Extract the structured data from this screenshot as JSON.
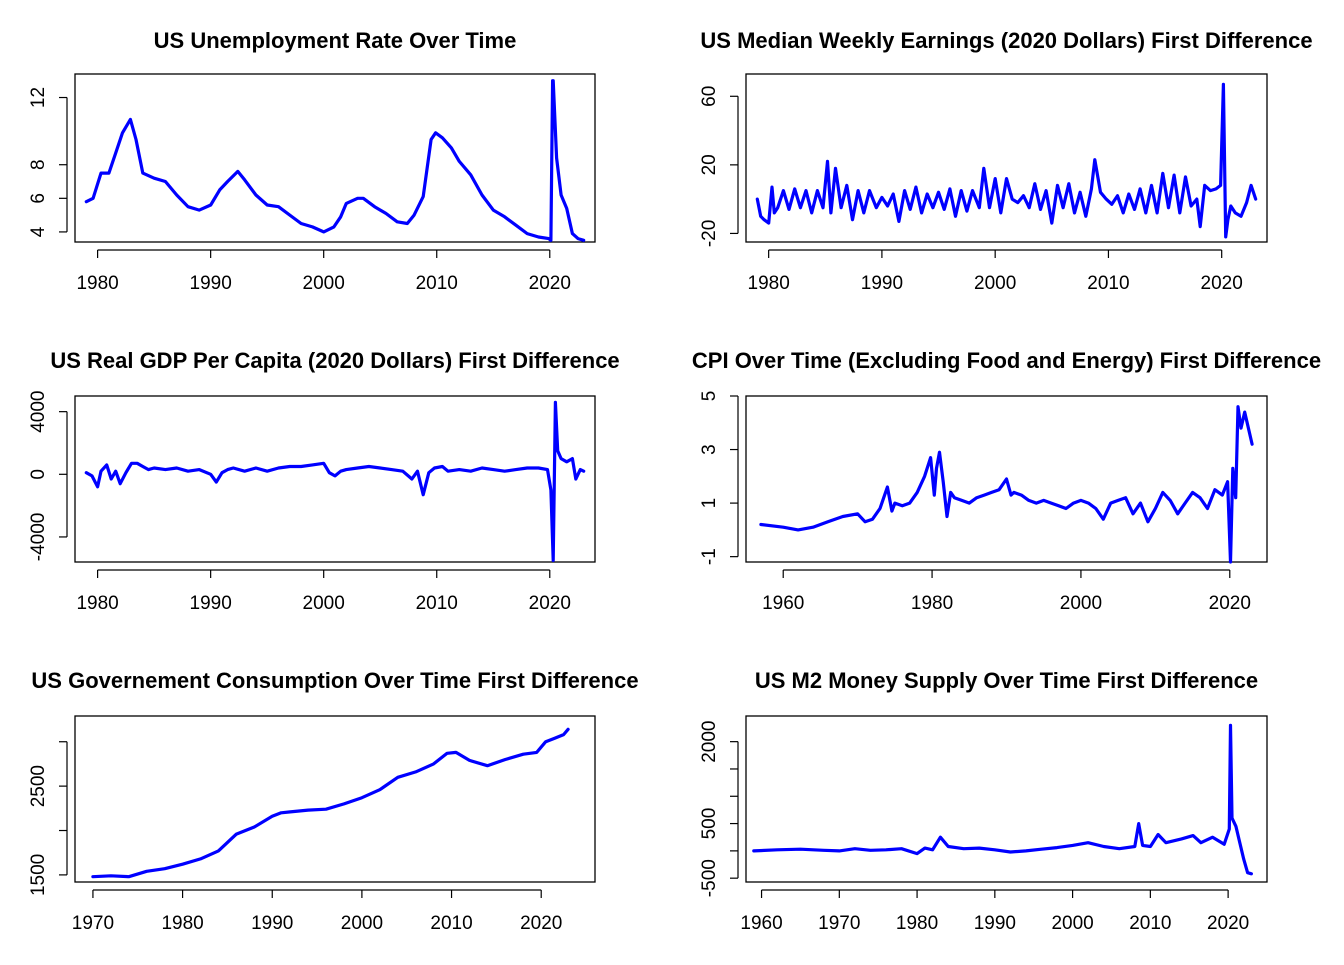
{
  "chart_data": [
    {
      "type": "line",
      "title": "US Unemployment Rate Over Time",
      "xlabel": "",
      "ylabel": "",
      "xlim": [
        1978,
        2024
      ],
      "ylim": [
        3.4,
        13.4
      ],
      "x_ticks": [
        1980,
        1990,
        2000,
        2010,
        2020
      ],
      "y_ticks": [
        4,
        6,
        8,
        12
      ],
      "grid": false,
      "color": "#0000ff",
      "series": [
        {
          "x": [
            1979,
            1979.6,
            1980.3,
            1980.6,
            1981,
            1981.6,
            1982.2,
            1982.9,
            1983.4,
            1984,
            1985,
            1986,
            1987,
            1988,
            1989,
            1990,
            1990.8,
            1991.5,
            1992.4,
            1993,
            1994,
            1995,
            1996,
            1997,
            1998,
            1999,
            2000,
            2000.9,
            2001.5,
            2002,
            2003,
            2003.5,
            2004.5,
            2005.5,
            2006.5,
            2007.4,
            2008,
            2008.8,
            2009.5,
            2009.9,
            2010.5,
            2011.3,
            2012,
            2013,
            2014,
            2015,
            2016,
            2017,
            2018,
            2019,
            2019.9,
            2020.1,
            2020.25,
            2020.3,
            2020.6,
            2021,
            2021.5,
            2022,
            2022.5,
            2023
          ],
          "y": [
            5.8,
            6.0,
            7.5,
            7.5,
            7.5,
            8.7,
            9.9,
            10.7,
            9.5,
            7.5,
            7.2,
            7.0,
            6.2,
            5.5,
            5.3,
            5.6,
            6.5,
            7.0,
            7.6,
            7.1,
            6.2,
            5.6,
            5.5,
            5.0,
            4.5,
            4.3,
            4.0,
            4.3,
            4.9,
            5.7,
            6.0,
            6.0,
            5.5,
            5.1,
            4.6,
            4.5,
            5.0,
            6.1,
            9.5,
            9.9,
            9.6,
            9.0,
            8.2,
            7.4,
            6.2,
            5.3,
            4.9,
            4.4,
            3.9,
            3.7,
            3.6,
            3.5,
            13.0,
            13.0,
            8.4,
            6.2,
            5.4,
            3.9,
            3.6,
            3.5
          ]
        }
      ]
    },
    {
      "type": "line",
      "title": "US Median Weekly Earnings (2020 Dollars) First Difference",
      "xlabel": "",
      "ylabel": "",
      "xlim": [
        1978,
        2024
      ],
      "ylim": [
        -25,
        73
      ],
      "x_ticks": [
        1980,
        1990,
        2000,
        2010,
        2020
      ],
      "y_ticks": [
        -20,
        20,
        60
      ],
      "grid": false,
      "color": "#0000ff",
      "series": [
        {
          "x": [
            1979,
            1979.3,
            1979.6,
            1980,
            1980.3,
            1980.5,
            1980.8,
            1981.3,
            1981.8,
            1982.3,
            1982.8,
            1983.3,
            1983.8,
            1984.3,
            1984.8,
            1985.2,
            1985.5,
            1985.9,
            1986.4,
            1986.9,
            1987.4,
            1987.9,
            1988.4,
            1988.9,
            1989.5,
            1990,
            1990.5,
            1991,
            1991.5,
            1992,
            1992.5,
            1993,
            1993.5,
            1994,
            1994.5,
            1995,
            1995.5,
            1996,
            1996.5,
            1997,
            1997.5,
            1998,
            1998.6,
            1999,
            1999.5,
            2000,
            2000.5,
            2001,
            2001.5,
            2002,
            2002.5,
            2003,
            2003.5,
            2004,
            2004.5,
            2005,
            2005.5,
            2006,
            2006.5,
            2007,
            2007.5,
            2008,
            2008.5,
            2008.8,
            2009.3,
            2009.8,
            2010.3,
            2010.8,
            2011.3,
            2011.8,
            2012.3,
            2012.8,
            2013.3,
            2013.8,
            2014.3,
            2014.8,
            2015.3,
            2015.8,
            2016.3,
            2016.8,
            2017.3,
            2017.8,
            2018.1,
            2018.5,
            2019,
            2019.5,
            2019.9,
            2020.15,
            2020.35,
            2020.55,
            2020.8,
            2021.2,
            2021.7,
            2022.2,
            2022.6,
            2023
          ],
          "y": [
            0,
            -10,
            -12,
            -14,
            7,
            -8,
            -5,
            5,
            -6,
            6,
            -5,
            5,
            -8,
            5,
            -5,
            22,
            -8,
            18,
            -5,
            8,
            -12,
            5,
            -8,
            5,
            -5,
            1,
            -4,
            3,
            -13,
            5,
            -6,
            7,
            -8,
            3,
            -5,
            4,
            -6,
            6,
            -10,
            5,
            -7,
            5,
            -5,
            18,
            -5,
            12,
            -8,
            12,
            0,
            -2,
            2,
            -5,
            9,
            -6,
            5,
            -14,
            8,
            -5,
            9,
            -8,
            4,
            -10,
            6,
            23,
            4,
            0,
            -3,
            2,
            -8,
            3,
            -6,
            6,
            -8,
            8,
            -8,
            15,
            -5,
            14,
            -8,
            13,
            -4,
            0,
            -16,
            8,
            5,
            6,
            8,
            67,
            -22,
            -12,
            -4,
            -8,
            -10,
            -2,
            8,
            0
          ]
        }
      ]
    },
    {
      "type": "line",
      "title": "US Real GDP Per Capita (2020 Dollars) First Difference",
      "xlabel": "",
      "ylabel": "",
      "xlim": [
        1978,
        2024
      ],
      "ylim": [
        -5600,
        5000
      ],
      "x_ticks": [
        1980,
        1990,
        2000,
        2010,
        2020
      ],
      "y_ticks": [
        -4000,
        0,
        4000
      ],
      "grid": false,
      "color": "#0000ff",
      "series": [
        {
          "x": [
            1979,
            1979.5,
            1980,
            1980.3,
            1980.8,
            1981.2,
            1981.6,
            1982,
            1982.5,
            1983,
            1983.5,
            1984,
            1984.5,
            1985,
            1986,
            1987,
            1988,
            1989,
            1990,
            1990.5,
            1991,
            1991.5,
            1992,
            1993,
            1994,
            1995,
            1996,
            1997,
            1998,
            1999,
            2000,
            2000.5,
            2001,
            2001.5,
            2002,
            2003,
            2004,
            2005,
            2006,
            2007,
            2007.8,
            2008.3,
            2008.8,
            2009.3,
            2009.8,
            2010.5,
            2011,
            2012,
            2013,
            2014,
            2015,
            2016,
            2017,
            2018,
            2019,
            2019.8,
            2020.1,
            2020.3,
            2020.5,
            2020.7,
            2021,
            2021.5,
            2022,
            2022.3,
            2022.7,
            2023
          ],
          "y": [
            100,
            -100,
            -800,
            200,
            600,
            -300,
            200,
            -600,
            100,
            700,
            700,
            500,
            300,
            400,
            300,
            400,
            200,
            300,
            0,
            -500,
            100,
            300,
            400,
            200,
            400,
            200,
            400,
            500,
            500,
            600,
            700,
            100,
            -100,
            200,
            300,
            400,
            500,
            400,
            300,
            200,
            -300,
            200,
            -1300,
            100,
            400,
            500,
            200,
            300,
            200,
            400,
            300,
            200,
            300,
            400,
            400,
            300,
            -1000,
            -5500,
            4600,
            1500,
            1000,
            800,
            1000,
            -300,
            300,
            200
          ]
        }
      ]
    },
    {
      "type": "line",
      "title": "CPI Over Time (Excluding Food and Energy) First Difference",
      "xlabel": "",
      "ylabel": "",
      "xlim": [
        1955,
        2025
      ],
      "ylim": [
        -1.2,
        5.0
      ],
      "x_ticks": [
        1960,
        1980,
        2000,
        2020
      ],
      "y_ticks": [
        -1,
        1,
        3,
        5
      ],
      "grid": false,
      "color": "#0000ff",
      "series": [
        {
          "x": [
            1957,
            1960,
            1962,
            1964,
            1966,
            1968,
            1970,
            1971,
            1972,
            1973,
            1974,
            1974.6,
            1975,
            1976,
            1977,
            1978,
            1979,
            1979.8,
            1980.3,
            1980.6,
            1981,
            1981.5,
            1982,
            1982.5,
            1983,
            1984,
            1985,
            1986,
            1987,
            1988,
            1989,
            1990,
            1990.6,
            1991,
            1992,
            1993,
            1994,
            1995,
            1996,
            1997,
            1998,
            1999,
            2000,
            2001,
            2002,
            2003,
            2004,
            2005,
            2006,
            2007,
            2008,
            2009,
            2010,
            2011,
            2012,
            2013,
            2014,
            2015,
            2016,
            2017,
            2018,
            2019,
            2019.7,
            2020.1,
            2020.4,
            2020.8,
            2021.1,
            2021.5,
            2022,
            2022.5,
            2023
          ],
          "y": [
            0.2,
            0.1,
            0.0,
            0.1,
            0.3,
            0.5,
            0.6,
            0.3,
            0.4,
            0.8,
            1.6,
            0.7,
            1.0,
            0.9,
            1.0,
            1.4,
            2.0,
            2.7,
            1.3,
            2.3,
            2.9,
            1.8,
            0.5,
            1.4,
            1.2,
            1.1,
            1.0,
            1.2,
            1.3,
            1.4,
            1.5,
            1.9,
            1.3,
            1.4,
            1.3,
            1.1,
            1.0,
            1.1,
            1.0,
            0.9,
            0.8,
            1.0,
            1.1,
            1.0,
            0.8,
            0.4,
            1.0,
            1.1,
            1.2,
            0.6,
            1.0,
            0.3,
            0.8,
            1.4,
            1.1,
            0.6,
            1.0,
            1.4,
            1.2,
            0.8,
            1.5,
            1.3,
            1.8,
            -1.2,
            2.3,
            1.2,
            4.6,
            3.8,
            4.4,
            3.8,
            3.2
          ]
        }
      ]
    },
    {
      "type": "line",
      "title": "US Governement Consumption Over Time First Difference",
      "xlabel": "",
      "ylabel": "",
      "xlim": [
        1968,
        2026
      ],
      "ylim": [
        1420,
        3290
      ],
      "x_ticks": [
        1970,
        1980,
        1990,
        2000,
        2010,
        2020
      ],
      "y_ticks": [
        1500,
        2500
      ],
      "extra_tick_marks": [
        2000,
        3000
      ],
      "grid": false,
      "color": "#0000ff",
      "series": [
        {
          "x": [
            1970,
            1972,
            1974,
            1976,
            1978,
            1980,
            1982,
            1984,
            1986,
            1988,
            1990,
            1991,
            1992,
            1994,
            1996,
            1998,
            2000,
            2002,
            2004,
            2006,
            2008,
            2009.5,
            2010.5,
            2012,
            2014,
            2016,
            2018,
            2019.5,
            2020.5,
            2021.5,
            2022.5,
            2023
          ],
          "y": [
            1480,
            1490,
            1480,
            1540,
            1570,
            1620,
            1680,
            1770,
            1960,
            2040,
            2160,
            2200,
            2210,
            2230,
            2240,
            2300,
            2370,
            2460,
            2600,
            2660,
            2750,
            2870,
            2880,
            2790,
            2730,
            2800,
            2860,
            2880,
            3000,
            3040,
            3080,
            3140
          ]
        }
      ]
    },
    {
      "type": "line",
      "title": "US M2 Money Supply Over Time First Difference",
      "xlabel": "",
      "ylabel": "",
      "xlim": [
        1958,
        2025
      ],
      "ylim": [
        -570,
        2470
      ],
      "x_ticks": [
        1960,
        1970,
        1980,
        1990,
        2000,
        2010,
        2020
      ],
      "y_ticks": [
        -500,
        500,
        2000
      ],
      "extra_tick_marks": [
        0,
        1000,
        1500
      ],
      "grid": false,
      "color": "#0000ff",
      "series": [
        {
          "x": [
            1959,
            1962,
            1965,
            1968,
            1970,
            1972,
            1974,
            1976,
            1978,
            1980,
            1981,
            1982,
            1983,
            1984,
            1986,
            1988,
            1990,
            1992,
            1994,
            1996,
            1998,
            2000,
            2002,
            2004,
            2006,
            2008,
            2008.5,
            2009,
            2010,
            2011,
            2012,
            2014,
            2015.5,
            2016.5,
            2018,
            2019.5,
            2020.15,
            2020.3,
            2020.5,
            2021,
            2021.5,
            2022,
            2022.5,
            2023
          ],
          "y": [
            0,
            20,
            30,
            10,
            0,
            40,
            10,
            20,
            40,
            -50,
            50,
            20,
            250,
            80,
            40,
            50,
            20,
            -20,
            0,
            30,
            60,
            100,
            150,
            80,
            40,
            80,
            500,
            100,
            80,
            300,
            150,
            220,
            280,
            150,
            250,
            120,
            400,
            2300,
            600,
            450,
            150,
            -150,
            -400,
            -420
          ]
        }
      ]
    }
  ]
}
